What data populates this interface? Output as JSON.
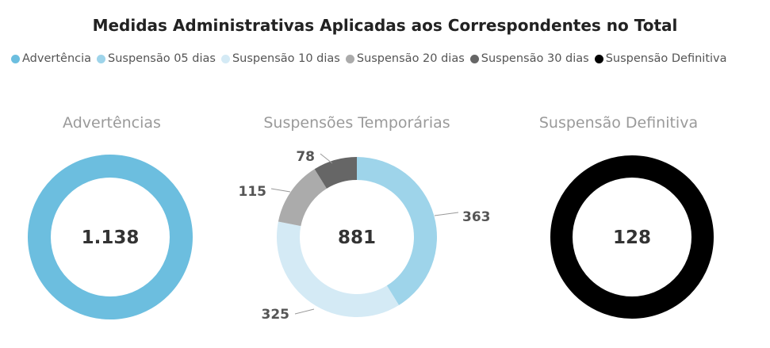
{
  "title": "Medidas Administrativas Aplicadas aos Correspondentes no Total",
  "legend": [
    {
      "label": "Advertência",
      "color": "#6cbedf"
    },
    {
      "label": "Suspensão 05 dias",
      "color": "#9ed4ea"
    },
    {
      "label": "Suspensão 10 dias",
      "color": "#d4eaf5"
    },
    {
      "label": "Suspensão 20 dias",
      "color": "#ababab"
    },
    {
      "label": "Suspensão 30 dias",
      "color": "#666666"
    },
    {
      "label": "Suspensão Definitiva",
      "color": "#000000"
    }
  ],
  "chart_data": [
    {
      "type": "pie",
      "title": "Advertências",
      "total_label": "1.138",
      "slices": [
        {
          "name": "Advertência",
          "value": 1138,
          "color": "#6cbedf"
        }
      ]
    },
    {
      "type": "pie",
      "title": "Suspensões Temporárias",
      "total_label": "881",
      "slices": [
        {
          "name": "Suspensão 05 dias",
          "value": 363,
          "label": "363",
          "color": "#9ed4ea"
        },
        {
          "name": "Suspensão 10 dias",
          "value": 325,
          "label": "325",
          "color": "#d4eaf5"
        },
        {
          "name": "Suspensão 20 dias",
          "value": 115,
          "label": "115",
          "color": "#ababab"
        },
        {
          "name": "Suspensão 30 dias",
          "value": 78,
          "label": "78",
          "color": "#666666"
        }
      ]
    },
    {
      "type": "pie",
      "title": "Suspensão Definitiva",
      "total_label": "128",
      "slices": [
        {
          "name": "Suspensão Definitiva",
          "value": 128,
          "color": "#000000"
        }
      ]
    }
  ]
}
